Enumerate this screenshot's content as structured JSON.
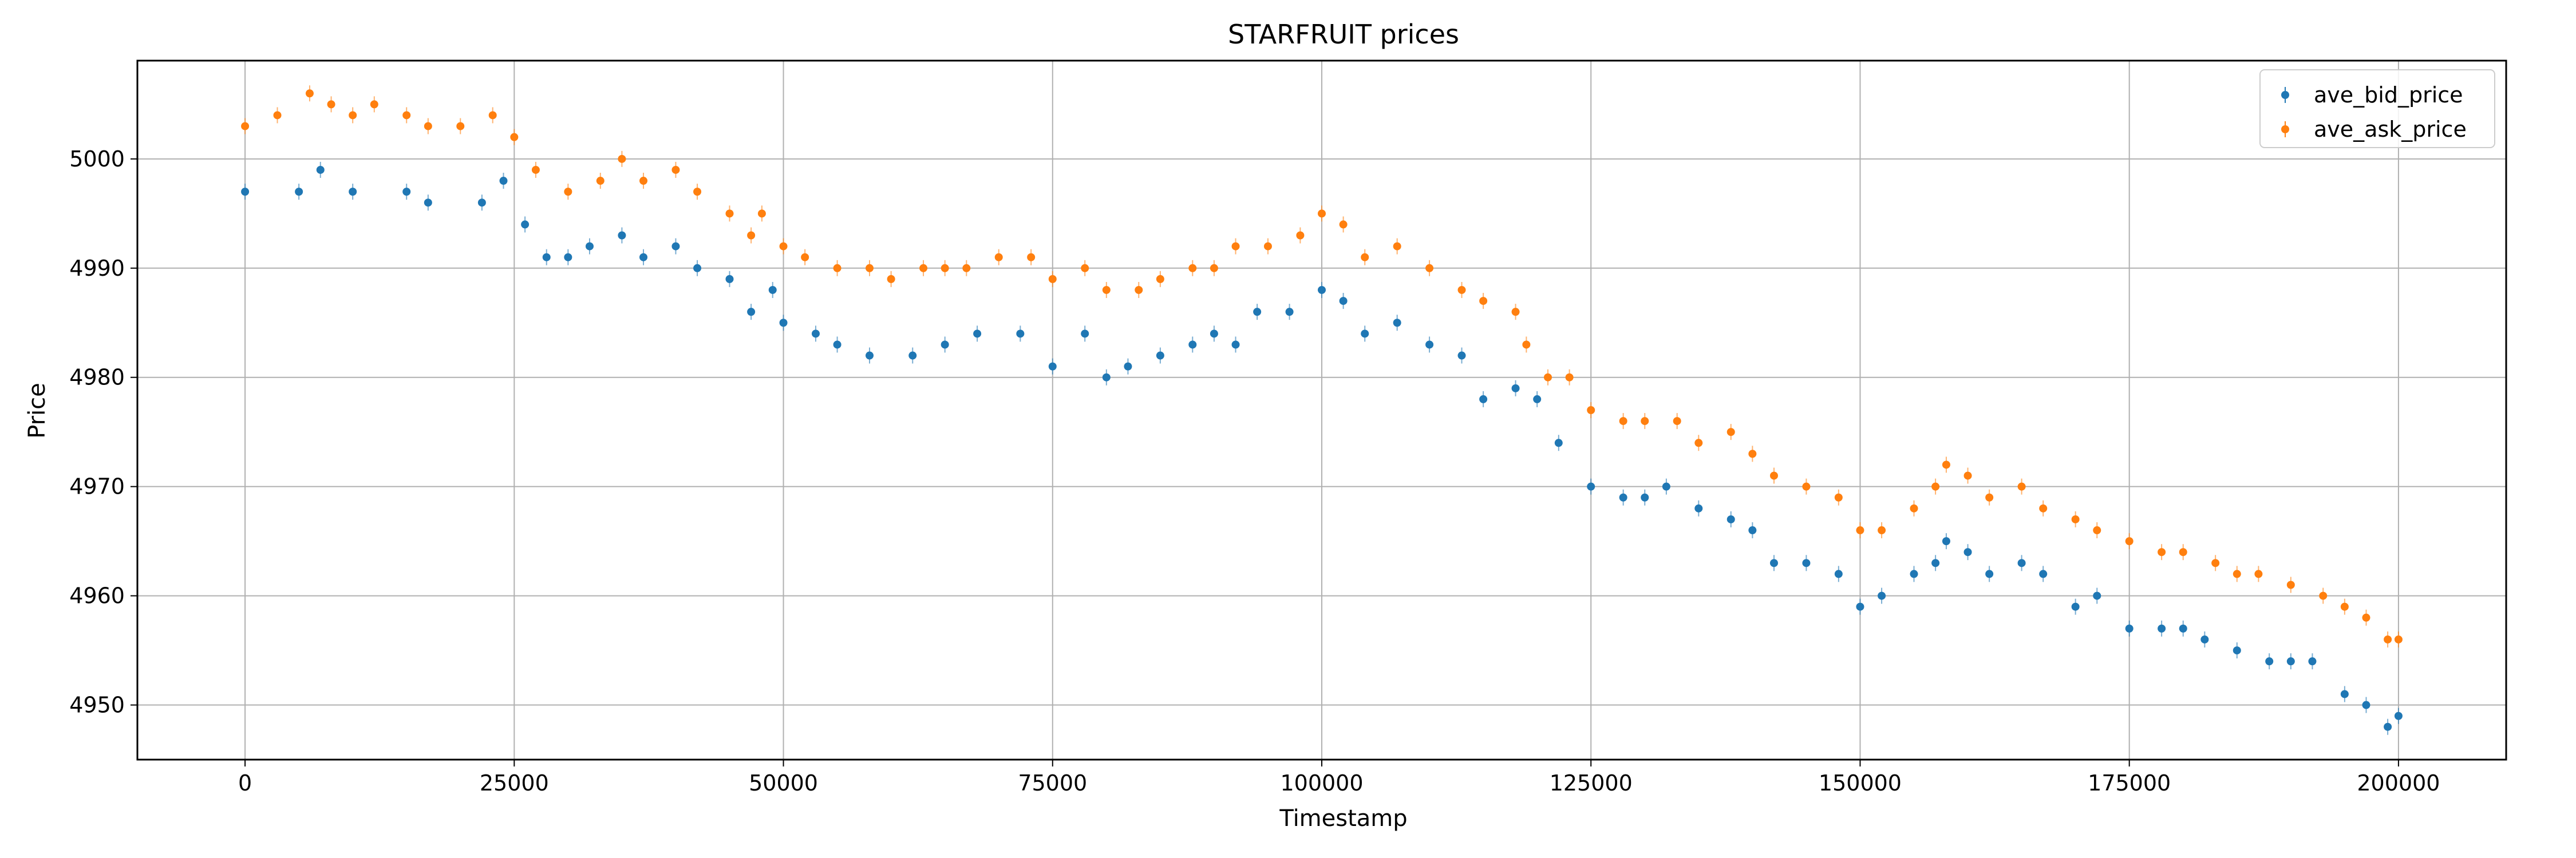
{
  "chart_data": {
    "type": "scatter",
    "title": "STARFRUIT prices",
    "xlabel": "Timestamp",
    "ylabel": "Price",
    "xlim": [
      -10000,
      210000
    ],
    "ylim": [
      4945,
      5009
    ],
    "xticks": [
      0,
      25000,
      50000,
      75000,
      100000,
      125000,
      150000,
      175000,
      200000
    ],
    "xtick_labels": [
      "0",
      "25000",
      "50000",
      "75000",
      "100000",
      "125000",
      "150000",
      "175000",
      "200000"
    ],
    "yticks": [
      4950,
      4960,
      4970,
      4980,
      4990,
      5000
    ],
    "ytick_labels": [
      "4950",
      "4960",
      "4970",
      "4980",
      "4990",
      "5000"
    ],
    "grid": true,
    "legend_position": "top-right",
    "series": [
      {
        "name": "ave_bid_price",
        "color": "#1f77b4",
        "points": [
          [
            0,
            4997
          ],
          [
            5000,
            4997
          ],
          [
            7000,
            4999
          ],
          [
            10000,
            4997
          ],
          [
            15000,
            4997
          ],
          [
            17000,
            4996
          ],
          [
            22000,
            4996
          ],
          [
            24000,
            4998
          ],
          [
            26000,
            4994
          ],
          [
            28000,
            4991
          ],
          [
            30000,
            4991
          ],
          [
            32000,
            4992
          ],
          [
            35000,
            4993
          ],
          [
            37000,
            4991
          ],
          [
            40000,
            4992
          ],
          [
            42000,
            4990
          ],
          [
            45000,
            4989
          ],
          [
            47000,
            4986
          ],
          [
            49000,
            4988
          ],
          [
            50000,
            4985
          ],
          [
            53000,
            4984
          ],
          [
            55000,
            4983
          ],
          [
            58000,
            4982
          ],
          [
            62000,
            4982
          ],
          [
            65000,
            4983
          ],
          [
            68000,
            4984
          ],
          [
            72000,
            4984
          ],
          [
            75000,
            4981
          ],
          [
            78000,
            4984
          ],
          [
            80000,
            4980
          ],
          [
            82000,
            4981
          ],
          [
            85000,
            4982
          ],
          [
            88000,
            4983
          ],
          [
            90000,
            4984
          ],
          [
            92000,
            4983
          ],
          [
            94000,
            4986
          ],
          [
            97000,
            4986
          ],
          [
            100000,
            4988
          ],
          [
            102000,
            4987
          ],
          [
            104000,
            4984
          ],
          [
            107000,
            4985
          ],
          [
            110000,
            4983
          ],
          [
            113000,
            4982
          ],
          [
            115000,
            4978
          ],
          [
            118000,
            4979
          ],
          [
            120000,
            4978
          ],
          [
            122000,
            4974
          ],
          [
            125000,
            4970
          ],
          [
            128000,
            4969
          ],
          [
            130000,
            4969
          ],
          [
            132000,
            4970
          ],
          [
            135000,
            4968
          ],
          [
            138000,
            4967
          ],
          [
            140000,
            4966
          ],
          [
            142000,
            4963
          ],
          [
            145000,
            4963
          ],
          [
            148000,
            4962
          ],
          [
            150000,
            4959
          ],
          [
            152000,
            4960
          ],
          [
            155000,
            4962
          ],
          [
            157000,
            4963
          ],
          [
            158000,
            4965
          ],
          [
            160000,
            4964
          ],
          [
            162000,
            4962
          ],
          [
            165000,
            4963
          ],
          [
            167000,
            4962
          ],
          [
            170000,
            4959
          ],
          [
            172000,
            4960
          ],
          [
            175000,
            4957
          ],
          [
            178000,
            4957
          ],
          [
            180000,
            4957
          ],
          [
            182000,
            4956
          ],
          [
            185000,
            4955
          ],
          [
            188000,
            4954
          ],
          [
            190000,
            4954
          ],
          [
            192000,
            4954
          ],
          [
            195000,
            4951
          ],
          [
            197000,
            4950
          ],
          [
            199000,
            4948
          ],
          [
            200000,
            4949
          ]
        ]
      },
      {
        "name": "ave_ask_price",
        "color": "#ff7f0e",
        "points": [
          [
            0,
            5003
          ],
          [
            3000,
            5004
          ],
          [
            6000,
            5006
          ],
          [
            8000,
            5005
          ],
          [
            10000,
            5004
          ],
          [
            12000,
            5005
          ],
          [
            15000,
            5004
          ],
          [
            17000,
            5003
          ],
          [
            20000,
            5003
          ],
          [
            23000,
            5004
          ],
          [
            25000,
            5002
          ],
          [
            27000,
            4999
          ],
          [
            30000,
            4997
          ],
          [
            33000,
            4998
          ],
          [
            35000,
            5000
          ],
          [
            37000,
            4998
          ],
          [
            40000,
            4999
          ],
          [
            42000,
            4997
          ],
          [
            45000,
            4995
          ],
          [
            47000,
            4993
          ],
          [
            48000,
            4995
          ],
          [
            50000,
            4992
          ],
          [
            52000,
            4991
          ],
          [
            55000,
            4990
          ],
          [
            58000,
            4990
          ],
          [
            60000,
            4989
          ],
          [
            63000,
            4990
          ],
          [
            65000,
            4990
          ],
          [
            67000,
            4990
          ],
          [
            70000,
            4991
          ],
          [
            73000,
            4991
          ],
          [
            75000,
            4989
          ],
          [
            78000,
            4990
          ],
          [
            80000,
            4988
          ],
          [
            83000,
            4988
          ],
          [
            85000,
            4989
          ],
          [
            88000,
            4990
          ],
          [
            90000,
            4990
          ],
          [
            92000,
            4992
          ],
          [
            95000,
            4992
          ],
          [
            98000,
            4993
          ],
          [
            100000,
            4995
          ],
          [
            102000,
            4994
          ],
          [
            104000,
            4991
          ],
          [
            107000,
            4992
          ],
          [
            110000,
            4990
          ],
          [
            113000,
            4988
          ],
          [
            115000,
            4987
          ],
          [
            118000,
            4986
          ],
          [
            119000,
            4983
          ],
          [
            121000,
            4980
          ],
          [
            123000,
            4980
          ],
          [
            125000,
            4977
          ],
          [
            128000,
            4976
          ],
          [
            130000,
            4976
          ],
          [
            133000,
            4976
          ],
          [
            135000,
            4974
          ],
          [
            138000,
            4975
          ],
          [
            140000,
            4973
          ],
          [
            142000,
            4971
          ],
          [
            145000,
            4970
          ],
          [
            148000,
            4969
          ],
          [
            150000,
            4966
          ],
          [
            152000,
            4966
          ],
          [
            155000,
            4968
          ],
          [
            157000,
            4970
          ],
          [
            158000,
            4972
          ],
          [
            160000,
            4971
          ],
          [
            162000,
            4969
          ],
          [
            165000,
            4970
          ],
          [
            167000,
            4968
          ],
          [
            170000,
            4967
          ],
          [
            172000,
            4966
          ],
          [
            175000,
            4965
          ],
          [
            178000,
            4964
          ],
          [
            180000,
            4964
          ],
          [
            183000,
            4963
          ],
          [
            185000,
            4962
          ],
          [
            187000,
            4962
          ],
          [
            190000,
            4961
          ],
          [
            193000,
            4960
          ],
          [
            195000,
            4959
          ],
          [
            197000,
            4958
          ],
          [
            199000,
            4956
          ],
          [
            200000,
            4956
          ]
        ]
      }
    ]
  }
}
